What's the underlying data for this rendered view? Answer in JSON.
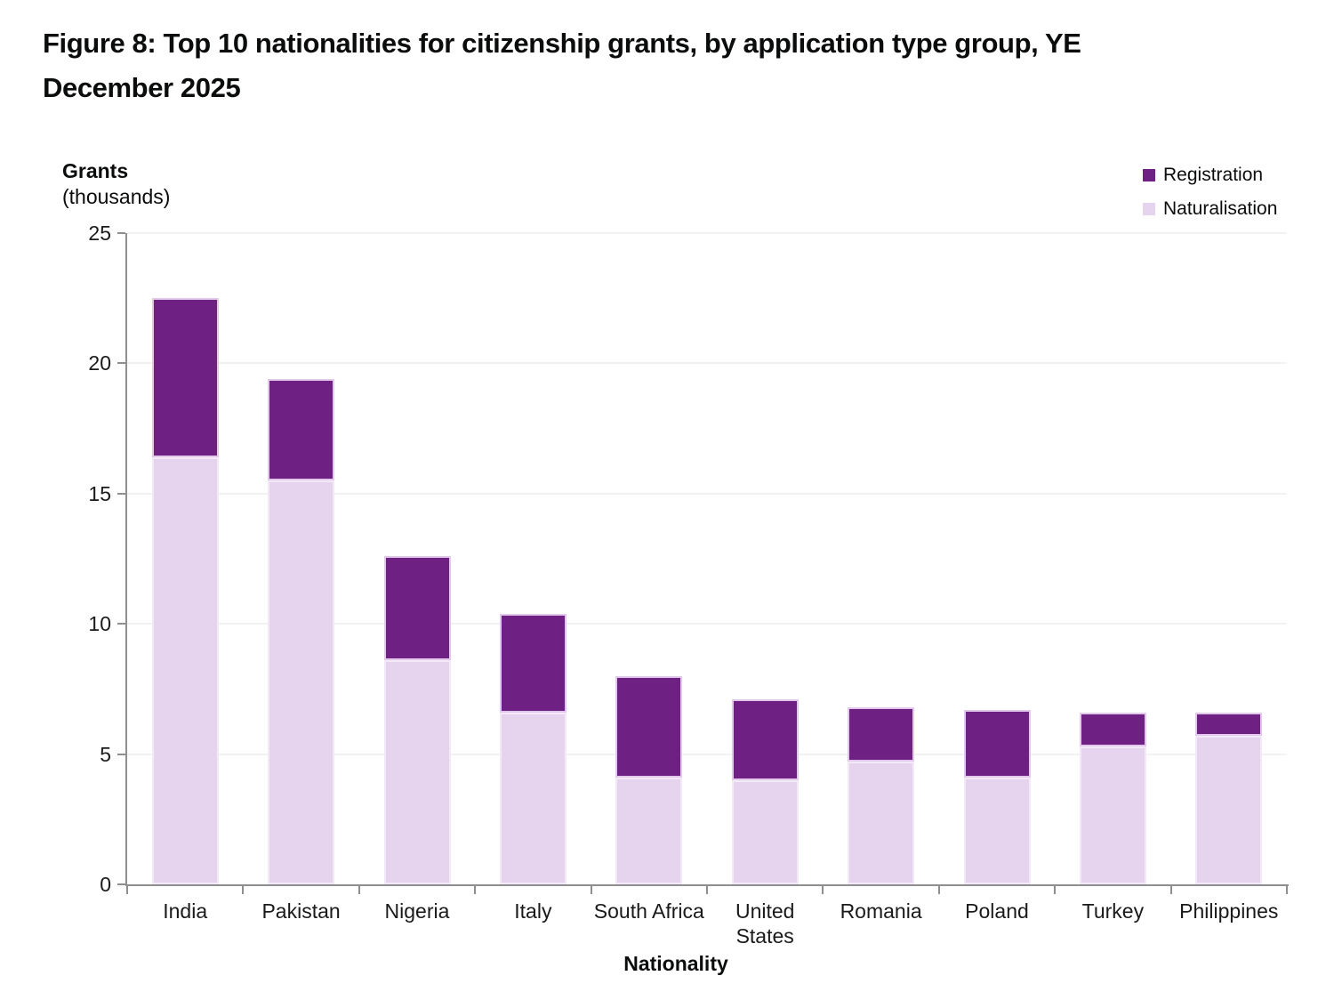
{
  "title_lines": [
    "Figure 8: Top 10 nationalities for citizenship grants, by application type group, YE",
    "December 2025"
  ],
  "chart_data": {
    "type": "bar",
    "stacked": true,
    "title": "Figure 8: Top 10 nationalities for citizenship grants, by application type group, YE December 2025",
    "xlabel": "Nationality",
    "ylabel": "Grants",
    "ylabel_sub": "(thousands)",
    "ylim": [
      0,
      25
    ],
    "y_ticks": [
      0,
      5,
      10,
      15,
      20,
      25
    ],
    "grid": true,
    "legend_position": "top-right",
    "categories": [
      "India",
      "Pakistan",
      "Nigeria",
      "Italy",
      "South Africa",
      "United States",
      "Romania",
      "Poland",
      "Turkey",
      "Philippines"
    ],
    "series": [
      {
        "name": "Registration",
        "color": "#6f2183",
        "values": [
          6.1,
          3.9,
          4.0,
          3.8,
          3.9,
          3.1,
          2.1,
          2.6,
          1.3,
          0.9
        ]
      },
      {
        "name": "Naturalisation",
        "color": "#e6d3ee",
        "values": [
          16.4,
          15.5,
          8.6,
          6.6,
          4.1,
          4.0,
          4.7,
          4.1,
          5.3,
          5.7
        ]
      }
    ],
    "totals": [
      22.5,
      19.4,
      12.6,
      10.4,
      8.0,
      7.1,
      6.8,
      6.7,
      6.6,
      6.6
    ]
  },
  "colors": {
    "registration": "#6f2183",
    "naturalisation": "#e6d3ee",
    "gridline": "#f2f2f2",
    "axis": "#8f8f8f",
    "text": "#0b0c0c"
  }
}
